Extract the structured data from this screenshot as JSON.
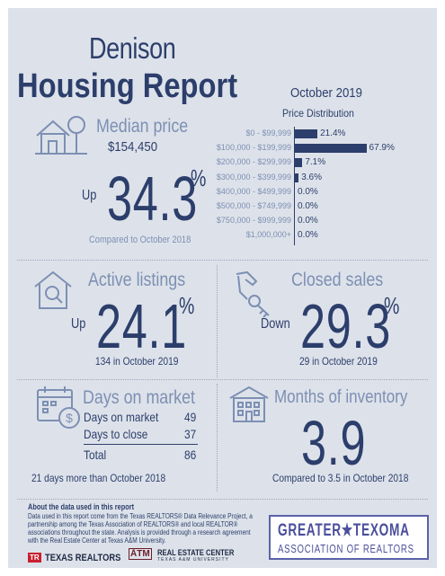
{
  "report": {
    "city": "Denison",
    "title": "Housing Report",
    "month": "October 2019"
  },
  "median": {
    "heading": "Median price",
    "price": "$154,450",
    "direction": "Up",
    "change": "34.3",
    "pct_sign": "%",
    "comparison": "Compared to October 2018"
  },
  "price_distribution": {
    "title": "Price Distribution",
    "chart_data": {
      "type": "bar",
      "orientation": "horizontal",
      "categories": [
        "$0 - $99,999",
        "$100,000 - $199,999",
        "$200,000 - $299,999",
        "$300,000 - $399,999",
        "$400,000 - $499,999",
        "$500,000 - $749,999",
        "$750,000 - $999,999",
        "$1,000,000+"
      ],
      "values": [
        21.4,
        67.9,
        7.1,
        3.6,
        0.0,
        0.0,
        0.0,
        0.0
      ],
      "value_labels": [
        "21.4%",
        "67.9%",
        "7.1%",
        "3.6%",
        "0.0%",
        "0.0%",
        "0.0%",
        "0.0%"
      ],
      "title": "Price Distribution",
      "xlim": [
        0,
        70
      ]
    }
  },
  "active": {
    "heading": "Active listings",
    "direction": "Up",
    "change": "24.1",
    "pct_sign": "%",
    "detail": "134 in October 2019"
  },
  "closed": {
    "heading": "Closed sales",
    "direction": "Down",
    "change": "29.3",
    "pct_sign": "%",
    "detail": "29 in October 2019"
  },
  "days": {
    "heading": "Days on market",
    "rows": [
      {
        "label": "Days on market",
        "value": "49"
      },
      {
        "label": "Days to close",
        "value": "37"
      }
    ],
    "total_label": "Total",
    "total_value": "86",
    "detail": "21 days more than October 2018"
  },
  "inventory": {
    "heading": "Months of inventory",
    "value": "3.9",
    "detail": "Compared to 3.5 in October 2018"
  },
  "about": {
    "title": "About the data used in this report",
    "lines": [
      "Data used in this report come from the Texas REALTORS® Data Relevance Project, a",
      "partnership among the Texas Association of REALTORS® and local REALTOR®",
      "associations throughout the state. Analysis is provided through a research agreement",
      "with the Real Estate Center at Texas A&M University."
    ]
  },
  "logos": {
    "texas_realtors": "TEXAS REALTORS",
    "tx_mark": "TR",
    "atm_mark": "ĀTM",
    "real_estate_center": "REAL ESTATE CENTER",
    "rec_sub": "TEXAS A&M UNIVERSITY",
    "gta_line1": "GREATER★TEXOMA",
    "gta_line2": "ASSOCIATION OF REALTORS"
  },
  "colors": {
    "navy": "#2c3e6b",
    "steel": "#7d8fb3",
    "background": "#dde2ea",
    "logo_purple": "#5a63a8",
    "logo_red": "#c8202f"
  }
}
